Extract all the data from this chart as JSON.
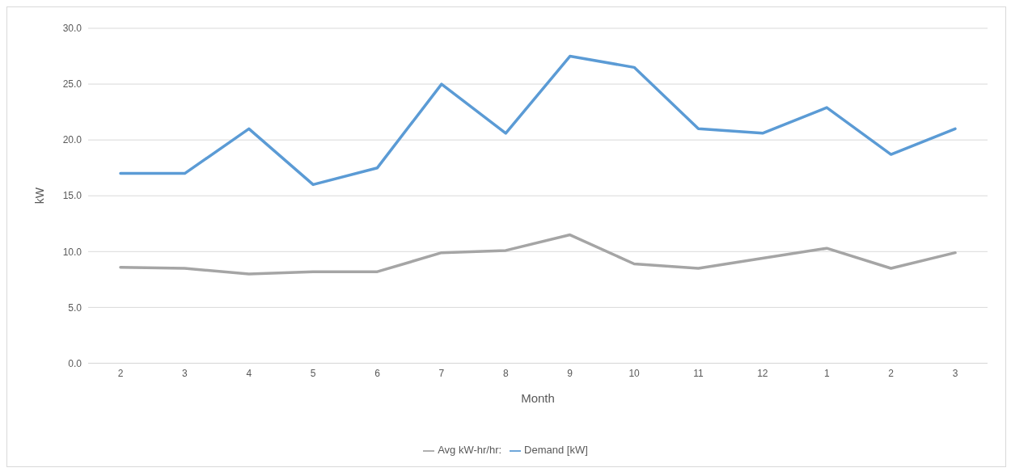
{
  "chart_data": {
    "type": "line",
    "xlabel": "Month",
    "ylabel": "kW",
    "categories": [
      "2",
      "3",
      "4",
      "5",
      "6",
      "7",
      "8",
      "9",
      "10",
      "11",
      "12",
      "1",
      "2",
      "3"
    ],
    "series": [
      {
        "name": "Avg kW-hr/hr:",
        "color": "#a5a5a5",
        "values": [
          8.6,
          8.5,
          8.0,
          8.2,
          8.2,
          9.9,
          10.1,
          11.5,
          8.9,
          8.5,
          9.4,
          10.3,
          8.5,
          9.9
        ]
      },
      {
        "name": "Demand [kW]",
        "color": "#5b9bd5",
        "values": [
          17.0,
          17.0,
          21.0,
          16.0,
          17.5,
          25.0,
          20.6,
          27.5,
          26.5,
          21.0,
          20.6,
          22.9,
          18.7,
          21.0
        ]
      }
    ],
    "ylim": [
      0,
      30
    ],
    "yticks": [
      {
        "value": 0,
        "label": "0.0"
      },
      {
        "value": 5,
        "label": "5.0"
      },
      {
        "value": 10,
        "label": "10.0"
      },
      {
        "value": 15,
        "label": "15.0"
      },
      {
        "value": 20,
        "label": "20.0"
      },
      {
        "value": 25,
        "label": "25.0"
      },
      {
        "value": 30,
        "label": "30.0"
      }
    ],
    "grid": "y",
    "legend": "bottom",
    "marker": "none",
    "line_style": "solid"
  }
}
